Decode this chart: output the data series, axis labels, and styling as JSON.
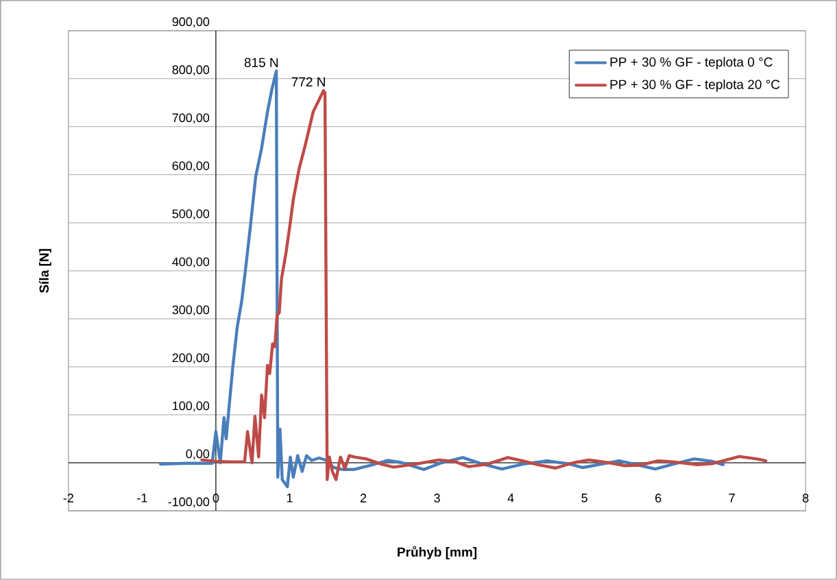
{
  "chart_data": {
    "type": "line",
    "xlabel": "Průhyb [mm]",
    "ylabel": "Síla [N]",
    "xlim": [
      -2,
      8
    ],
    "xticks": [
      -2,
      -1,
      0,
      1,
      2,
      3,
      4,
      5,
      6,
      7,
      8
    ],
    "ylim": [
      -100,
      900
    ],
    "yticks": [
      {
        "value": -100,
        "label": "-100,00"
      },
      {
        "value": 0,
        "label": "0,00"
      },
      {
        "value": 100,
        "label": "100,00"
      },
      {
        "value": 200,
        "label": "200,00"
      },
      {
        "value": 300,
        "label": "300,00"
      },
      {
        "value": 400,
        "label": "400,00"
      },
      {
        "value": 500,
        "label": "500,00"
      },
      {
        "value": 600,
        "label": "600,00"
      },
      {
        "value": 700,
        "label": "700,00"
      },
      {
        "value": 800,
        "label": "800,00"
      },
      {
        "value": 900,
        "label": "900,00"
      }
    ],
    "grid": "y",
    "legend": "top right",
    "marker": "none",
    "line_style": "solid",
    "annotations": [
      {
        "text": "815 N",
        "x": 0.82,
        "y": 815
      },
      {
        "text": "772 N",
        "x": 1.46,
        "y": 775
      }
    ],
    "series": [
      {
        "name": "PP + 30 % GF - teplota 0 °C",
        "color": "#4a7ebb",
        "x": [
          -0.75,
          -0.4,
          -0.05,
          0,
          0.06,
          0.11,
          0.14,
          0.18,
          0.23,
          0.29,
          0.35,
          0.41,
          0.47,
          0.54,
          0.62,
          0.7,
          0.76,
          0.82,
          0.84,
          0.87,
          0.9,
          0.97,
          1.01,
          1.05,
          1.11,
          1.17,
          1.23,
          1.3,
          1.4,
          1.5,
          1.6,
          1.72,
          1.87,
          2.1,
          2.33,
          2.53,
          2.82,
          3.06,
          3.35,
          3.6,
          3.88,
          4.16,
          4.49,
          4.78,
          4.98,
          5.22,
          5.47,
          5.71,
          5.96,
          6.2,
          6.49,
          6.73,
          6.88
        ],
        "values": [
          -3,
          -1,
          -1,
          65,
          0,
          94,
          50,
          118,
          200,
          283,
          336,
          413,
          495,
          596,
          655,
          731,
          778,
          816,
          -30,
          70,
          -35,
          -50,
          12,
          -30,
          15,
          -18,
          15,
          5,
          10,
          5,
          -10,
          -14,
          -14,
          -5,
          5,
          0,
          -14,
          0,
          11,
          -2,
          -13,
          -3,
          4,
          -2,
          -10,
          -3,
          4,
          -4,
          -13,
          -3,
          8,
          3,
          -4
        ]
      },
      {
        "name": "PP + 30 % GF - teplota 20 °C",
        "color": "#be4b48",
        "x": [
          -0.19,
          0.0,
          0.2,
          0.39,
          0.43,
          0.49,
          0.53,
          0.58,
          0.62,
          0.66,
          0.7,
          0.73,
          0.77,
          0.8,
          0.83,
          0.86,
          0.89,
          0.95,
          1.01,
          1.05,
          1.13,
          1.21,
          1.32,
          1.46,
          1.48,
          1.51,
          1.54,
          1.58,
          1.63,
          1.69,
          1.75,
          1.81,
          1.88,
          2.04,
          2.25,
          2.41,
          2.7,
          3.02,
          3.23,
          3.43,
          3.68,
          3.96,
          4.16,
          4.37,
          4.61,
          4.85,
          5.06,
          5.3,
          5.55,
          5.75,
          6.0,
          6.2,
          6.53,
          6.73,
          7.1,
          7.34,
          7.46
        ],
        "values": [
          6,
          3,
          2,
          2,
          65,
          0,
          97,
          12,
          141,
          94,
          203,
          186,
          248,
          242,
          307,
          313,
          383,
          436,
          501,
          548,
          613,
          660,
          731,
          775,
          770,
          -35,
          12,
          -18,
          -35,
          12,
          -12,
          15,
          12,
          8,
          -3,
          -9,
          -3,
          6,
          3,
          -8,
          -3,
          11,
          4,
          -4,
          -11,
          0,
          6,
          1,
          -6,
          -5,
          4,
          2,
          -4,
          -2,
          13,
          8,
          4
        ]
      }
    ]
  }
}
